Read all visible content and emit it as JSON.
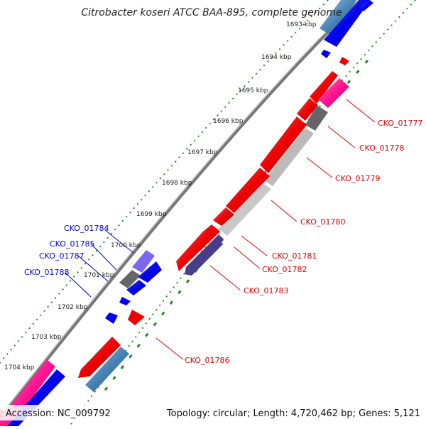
{
  "title": "Citrobacter koseri ATCC BAA-895, complete genome",
  "footer": {
    "accession": "Accession: NC_009792",
    "summary": "Topology: circular; Length: 4,720,462 bp; Genes: 5,121"
  },
  "colors": {
    "red_gene": "#ee0000",
    "blue_gene": "#0000ee",
    "steelblue_gene": "#4682b4",
    "pink_gene": "#ff1493",
    "gray_gene": "#666666",
    "lightgray_gene": "#bbbbbb",
    "slateblue_gene": "#483d8b",
    "mediumpurple_gene": "#7b68ee",
    "backbone": "#777777",
    "tick_green": "#228b22",
    "label_red": "#dd0000",
    "label_blue": "#0000dd"
  },
  "ruler": {
    "unit": "kbp",
    "ticks": [
      "1693 kbp",
      "1694 kbp",
      "1695 kbp",
      "1696 kbp",
      "1697 kbp",
      "1698 kbp",
      "1699 kbp",
      "1700 kbp",
      "1701 kbp",
      "1702 kbp",
      "1703 kbp",
      "1704 kbp"
    ]
  },
  "gene_labels": {
    "right": [
      "CKO_01777",
      "CKO_01778",
      "CKO_01779",
      "CKO_01780",
      "CKO_01781",
      "CKO_01782",
      "CKO_01783",
      "CKO_01786"
    ],
    "left": [
      "CKO_01784",
      "CKO_01785",
      "CKO_01787",
      "CKO_01788"
    ]
  }
}
